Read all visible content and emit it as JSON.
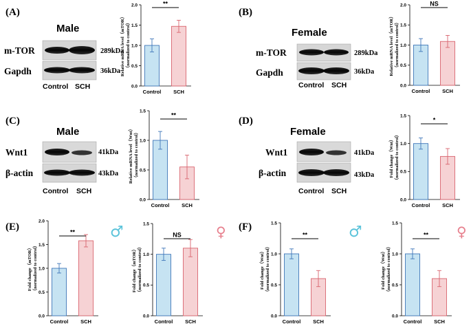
{
  "colors": {
    "control_fill": "#c6e3f2",
    "control_stroke": "#3f76b9",
    "sch_fill": "#f6d2d4",
    "sch_stroke": "#d9646e",
    "male_symbol": "#5bc3da",
    "female_symbol": "#e77f8d"
  },
  "symbols": {
    "male": "♂",
    "female": "♀"
  },
  "blots": [
    {
      "panel": "(A)",
      "sex": "Male",
      "groups": [
        "Control",
        "SCH"
      ],
      "proteins": [
        {
          "name": "m-TOR",
          "kda": "289kDa"
        },
        {
          "name": "Gapdh",
          "kda": "36kDa"
        }
      ]
    },
    {
      "panel": "(B)",
      "sex": "Female",
      "groups": [
        "Control",
        "SCH"
      ],
      "proteins": [
        {
          "name": "m-TOR",
          "kda": "289kDa"
        },
        {
          "name": "Gapdh",
          "kda": "36kDa"
        }
      ]
    },
    {
      "panel": "(C)",
      "sex": "Male",
      "groups": [
        "Control",
        "SCH"
      ],
      "proteins": [
        {
          "name": "Wnt1",
          "kda": "41kDa"
        },
        {
          "name": "β-actin",
          "kda": "43kDa"
        }
      ]
    },
    {
      "panel": "(D)",
      "sex": "Female",
      "groups": [
        "Control",
        "SCH"
      ],
      "proteins": [
        {
          "name": "Wnt1",
          "kda": "41kDa"
        },
        {
          "name": "β-actin",
          "kda": "43kDa"
        }
      ]
    }
  ],
  "bottom_labels": [
    "(E)",
    "(F)"
  ],
  "chart_data": [
    {
      "type": "bar",
      "id": "A",
      "ylabel": [
        "Relative mRNA level（mTOR）",
        "（normalized to control）"
      ],
      "categories": [
        "Control",
        "SCH"
      ],
      "values": [
        1.0,
        1.47
      ],
      "errors": [
        0.16,
        0.15
      ],
      "ylim": [
        0,
        2.0
      ],
      "yticks": [
        "0.0",
        "0.5",
        "1.0",
        "1.5",
        "2.0"
      ],
      "significance": "**"
    },
    {
      "type": "bar",
      "id": "B",
      "ylabel": [
        "Relative mRNA level（mTOR）",
        "（normalized to control）"
      ],
      "categories": [
        "Control",
        "SCH"
      ],
      "values": [
        1.0,
        1.09
      ],
      "errors": [
        0.16,
        0.15
      ],
      "ylim": [
        0,
        2.0
      ],
      "yticks": [
        "0.0",
        "0.5",
        "1.0",
        "1.5",
        "2.0"
      ],
      "significance": "NS"
    },
    {
      "type": "bar",
      "id": "C",
      "ylabel": [
        "Relative mRNA level（Wnt）",
        "（normalized to control）"
      ],
      "categories": [
        "Control",
        "SCH"
      ],
      "values": [
        1.0,
        0.55
      ],
      "errors": [
        0.15,
        0.2
      ],
      "ylim": [
        0,
        1.5
      ],
      "yticks": [
        "0.0",
        "0.5",
        "1.0",
        "1.5"
      ],
      "significance": "**"
    },
    {
      "type": "bar",
      "id": "D",
      "ylabel": [
        "Fold change（Wnt）",
        "（normalized to control）"
      ],
      "categories": [
        "Control",
        "SCH"
      ],
      "values": [
        1.0,
        0.77
      ],
      "errors": [
        0.1,
        0.14
      ],
      "ylim": [
        0,
        1.5
      ],
      "yticks": [
        "0.0",
        "0.5",
        "1.0",
        "1.5"
      ],
      "significance": "*"
    },
    {
      "type": "bar",
      "id": "E1",
      "ylabel": [
        "Fold change（mTOR）",
        "（normalized to control）"
      ],
      "categories": [
        "Control",
        "SCH"
      ],
      "values": [
        1.0,
        1.58
      ],
      "errors": [
        0.1,
        0.13
      ],
      "ylim": [
        0,
        2.0
      ],
      "yticks": [
        "0.0",
        "0.5",
        "1.0",
        "1.5",
        "2.0"
      ],
      "significance": "**"
    },
    {
      "type": "bar",
      "id": "E2",
      "ylabel": [
        "Fold change（mTOR）",
        "（normalized to control）"
      ],
      "categories": [
        "Control",
        "SCH"
      ],
      "values": [
        1.0,
        1.1
      ],
      "errors": [
        0.1,
        0.14
      ],
      "ylim": [
        0,
        1.5
      ],
      "yticks": [
        "0.0",
        "0.5",
        "1.0",
        "1.5"
      ],
      "significance": "NS"
    },
    {
      "type": "bar",
      "id": "F1",
      "ylabel": [
        "Fold change（Wnt）",
        "（normalized to control）"
      ],
      "categories": [
        "Control",
        "SCH"
      ],
      "values": [
        1.0,
        0.6
      ],
      "errors": [
        0.08,
        0.13
      ],
      "ylim": [
        0,
        1.5
      ],
      "yticks": [
        "0.0",
        "0.5",
        "1.0",
        "1.5"
      ],
      "significance": "**"
    },
    {
      "type": "bar",
      "id": "F2",
      "ylabel": [
        "Fold change（Wnt）",
        "（normalized to control）"
      ],
      "categories": [
        "Control",
        "SCH"
      ],
      "values": [
        1.0,
        0.6
      ],
      "errors": [
        0.08,
        0.13
      ],
      "ylim": [
        0,
        1.5
      ],
      "yticks": [
        "0.0",
        "0.5",
        "1.0",
        "1.5"
      ],
      "significance": "**"
    }
  ]
}
